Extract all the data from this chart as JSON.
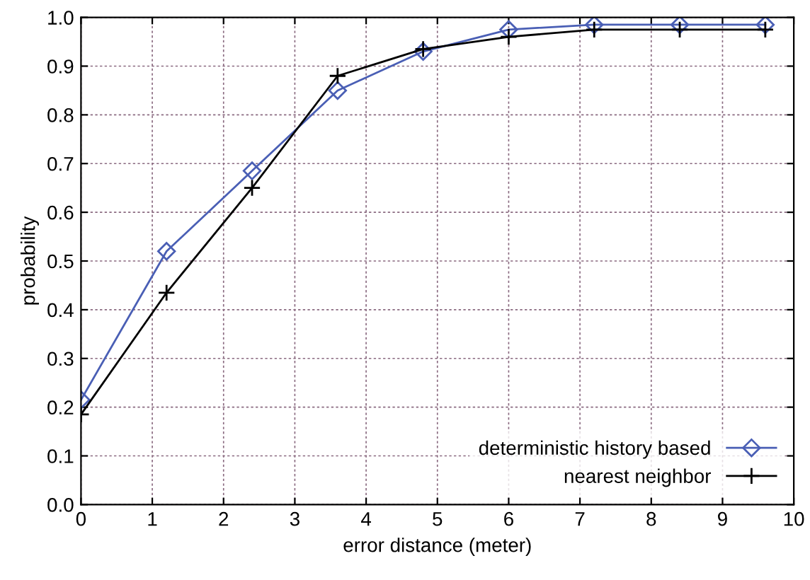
{
  "chart_data": {
    "type": "line",
    "xlabel": "error distance (meter)",
    "ylabel": "probability",
    "x": [
      0,
      1.2,
      2.4,
      3.6,
      4.8,
      6.0,
      7.2,
      8.4,
      9.6
    ],
    "series": [
      {
        "name": "deterministic history based",
        "color": "#4a5fb5",
        "marker": "diamond",
        "values": [
          0.215,
          0.52,
          0.685,
          0.85,
          0.93,
          0.975,
          0.985,
          0.985,
          0.985
        ]
      },
      {
        "name": "nearest neighbor",
        "color": "#000000",
        "marker": "cross",
        "values": [
          0.185,
          0.435,
          0.65,
          0.88,
          0.935,
          0.96,
          0.975,
          0.975,
          0.975
        ]
      }
    ],
    "xlim": [
      0,
      10
    ],
    "xticks": [
      0,
      1,
      2,
      3,
      4,
      5,
      6,
      7,
      8,
      9,
      10
    ],
    "ylim": [
      0.0,
      1.0
    ],
    "yticks": [
      {
        "value": 0.0,
        "label": "0.0"
      },
      0.1,
      0.2,
      0.3,
      0.4,
      0.5,
      0.6,
      0.7,
      0.8,
      0.9,
      {
        "value": 1.0,
        "label": "1.0"
      }
    ],
    "grid": true,
    "legend": "bottom right",
    "line_style": "solid"
  }
}
